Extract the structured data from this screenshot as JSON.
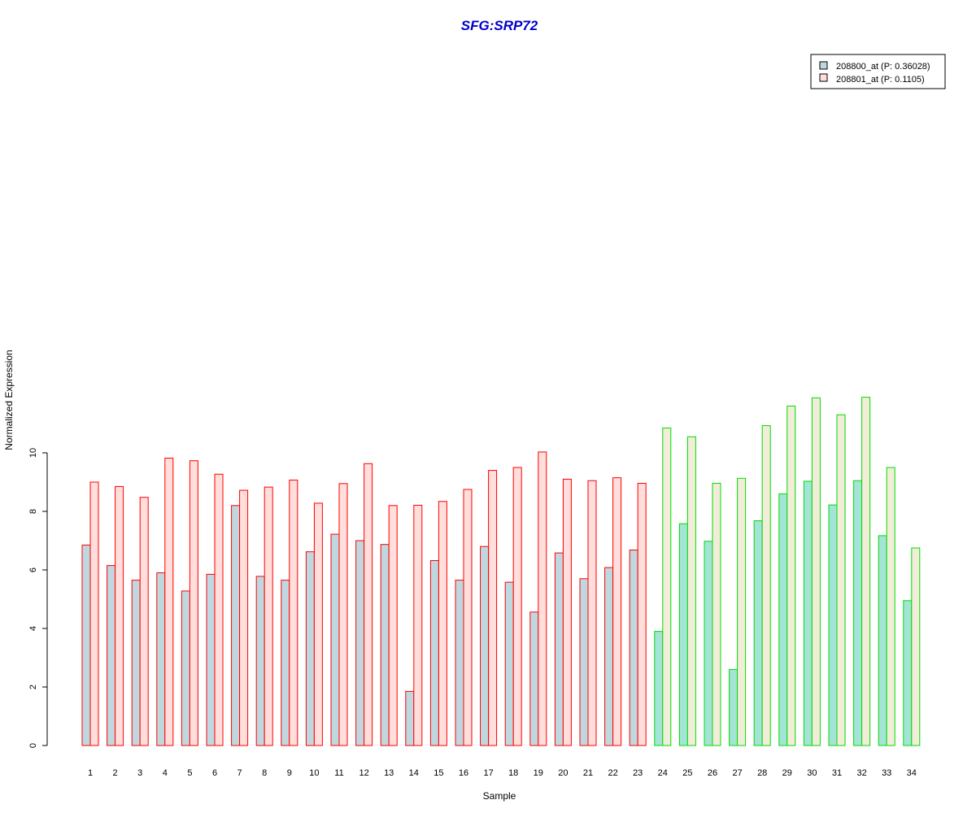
{
  "chart_data": {
    "type": "bar",
    "title": "SFG:SRP72",
    "title_color": "#0000CC",
    "xlabel": "Sample",
    "ylabel": "Normalized Expression",
    "ylim": [
      0,
      12
    ],
    "yticks": [
      0,
      2,
      4,
      6,
      8,
      10
    ],
    "categories": [
      "1",
      "2",
      "3",
      "4",
      "5",
      "6",
      "7",
      "8",
      "9",
      "10",
      "11",
      "12",
      "13",
      "14",
      "15",
      "16",
      "17",
      "18",
      "19",
      "20",
      "21",
      "22",
      "23",
      "24",
      "25",
      "26",
      "27",
      "28",
      "29",
      "30",
      "31",
      "32",
      "33",
      "34"
    ],
    "series": [
      {
        "name": "208800_at (P: 0.36028)",
        "values": [
          6.85,
          6.15,
          5.65,
          5.9,
          5.28,
          5.85,
          8.2,
          5.78,
          5.65,
          6.62,
          7.22,
          7.0,
          6.87,
          1.85,
          6.32,
          5.65,
          6.8,
          5.58,
          4.56,
          6.58,
          5.7,
          6.08,
          6.68,
          3.9,
          7.58,
          6.98,
          2.6,
          7.68,
          8.6,
          9.03,
          8.22,
          9.05,
          7.17,
          4.95
        ]
      },
      {
        "name": "208801_at (P: 0.1105)",
        "values": [
          9.0,
          8.85,
          8.48,
          9.82,
          9.73,
          9.27,
          8.72,
          8.83,
          9.07,
          8.28,
          8.95,
          9.63,
          8.2,
          8.21,
          8.34,
          8.75,
          9.4,
          9.5,
          10.03,
          9.1,
          9.05,
          9.15,
          8.96,
          10.85,
          10.55,
          8.96,
          9.13,
          10.93,
          11.6,
          11.88,
          11.3,
          11.9,
          9.5,
          6.75
        ]
      }
    ],
    "groups": [
      {
        "from_index": 0,
        "to_index": 22,
        "border": "#FF0000",
        "fills": [
          "#BFD8E0",
          "#FFDEDC"
        ]
      },
      {
        "from_index": 23,
        "to_index": 33,
        "border": "#00DD00",
        "fills": [
          "#A3E4D7",
          "#F2EDD8"
        ]
      }
    ],
    "legend": {
      "position": "top-right",
      "entries": [
        {
          "label": "208800_at (P: 0.36028)",
          "swatch": "#BFD8E0"
        },
        {
          "label": "208801_at (P: 0.1105)",
          "swatch": "#FFDEDC"
        }
      ]
    },
    "grid": false
  }
}
